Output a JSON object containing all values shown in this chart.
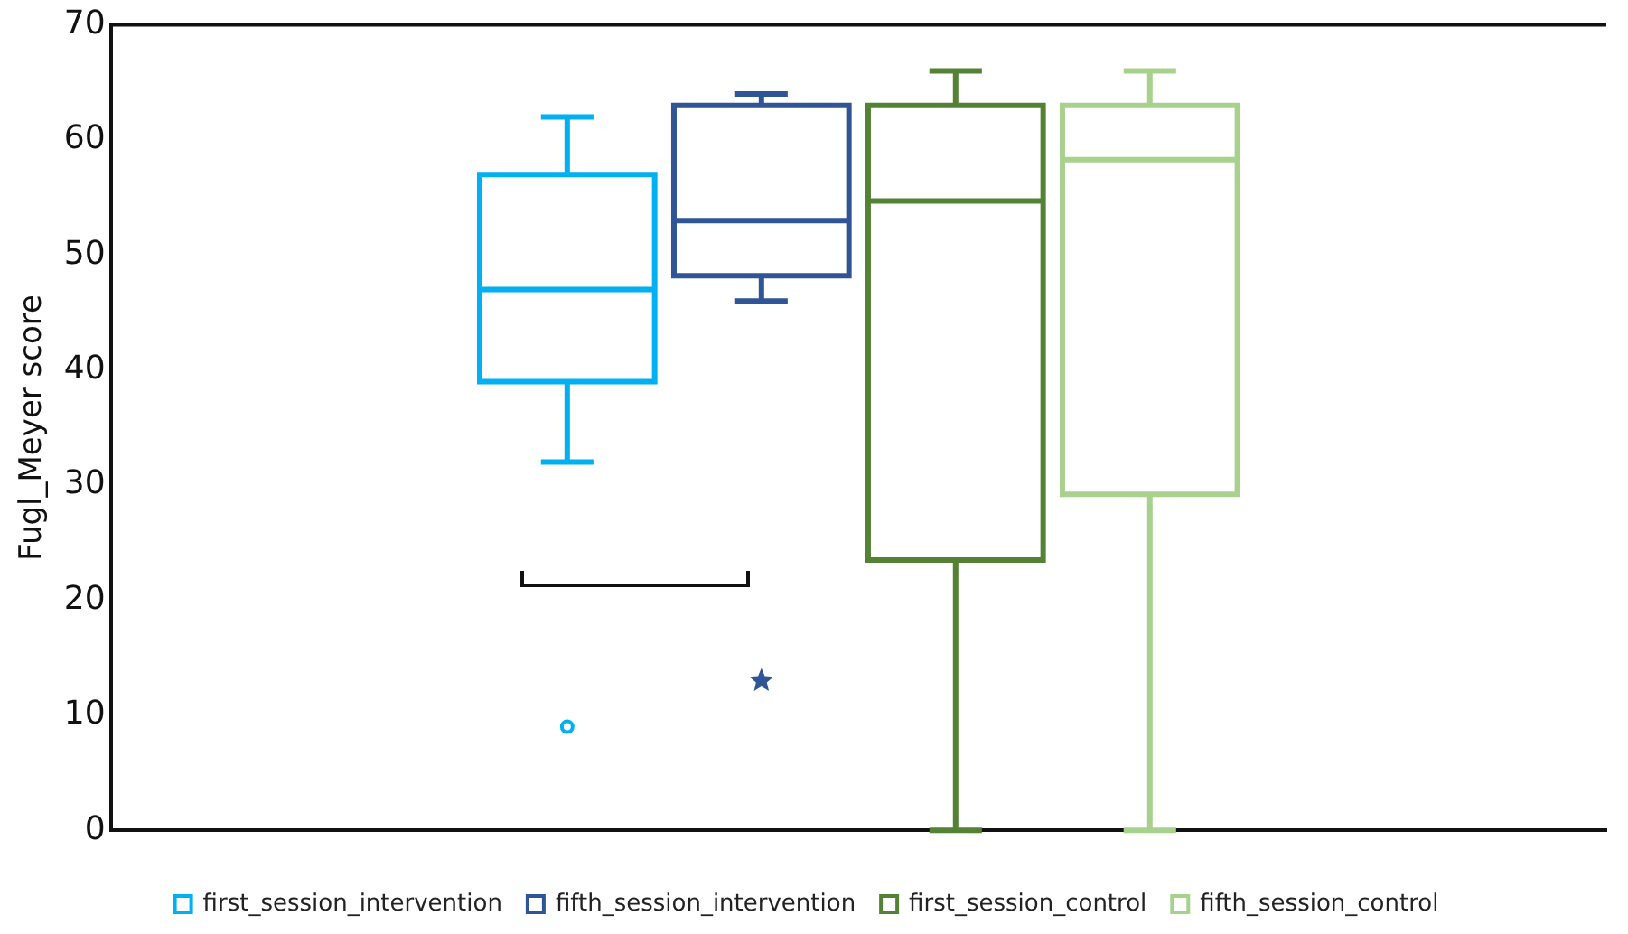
{
  "chart_data": {
    "type": "box",
    "ylabel": "Fugl_Meyer score",
    "categories": [
      null
    ],
    "ylim": [
      0,
      70
    ],
    "yticks": [
      0,
      10,
      20,
      30,
      40,
      50,
      60,
      70
    ],
    "grid": false,
    "legend": "bottom",
    "series": [
      {
        "name": "first_session_intervention",
        "color": "#00b0f0",
        "marker": "circle",
        "boxes": [
          {
            "low": 32,
            "q1": 39,
            "median": 47,
            "q3": 57,
            "high": 62,
            "outliers": [
              9
            ]
          }
        ]
      },
      {
        "name": "fifth_session_intervention",
        "color": "#2f5597",
        "marker": "star",
        "boxes": [
          {
            "low": 46,
            "q1": 48.2,
            "median": 53,
            "q3": 63,
            "high": 64,
            "outliers": [
              13
            ]
          }
        ]
      },
      {
        "name": "first_session_control",
        "color": "#548235",
        "boxes": [
          {
            "low": 0,
            "q1": 23.5,
            "median": 54.7,
            "q3": 63,
            "high": 66
          }
        ]
      },
      {
        "name": "fifth_session_control",
        "color": "#a9d18e",
        "boxes": [
          {
            "low": 0,
            "q1": 29.2,
            "median": 58.3,
            "q3": 63,
            "high": 66
          }
        ]
      }
    ]
  }
}
